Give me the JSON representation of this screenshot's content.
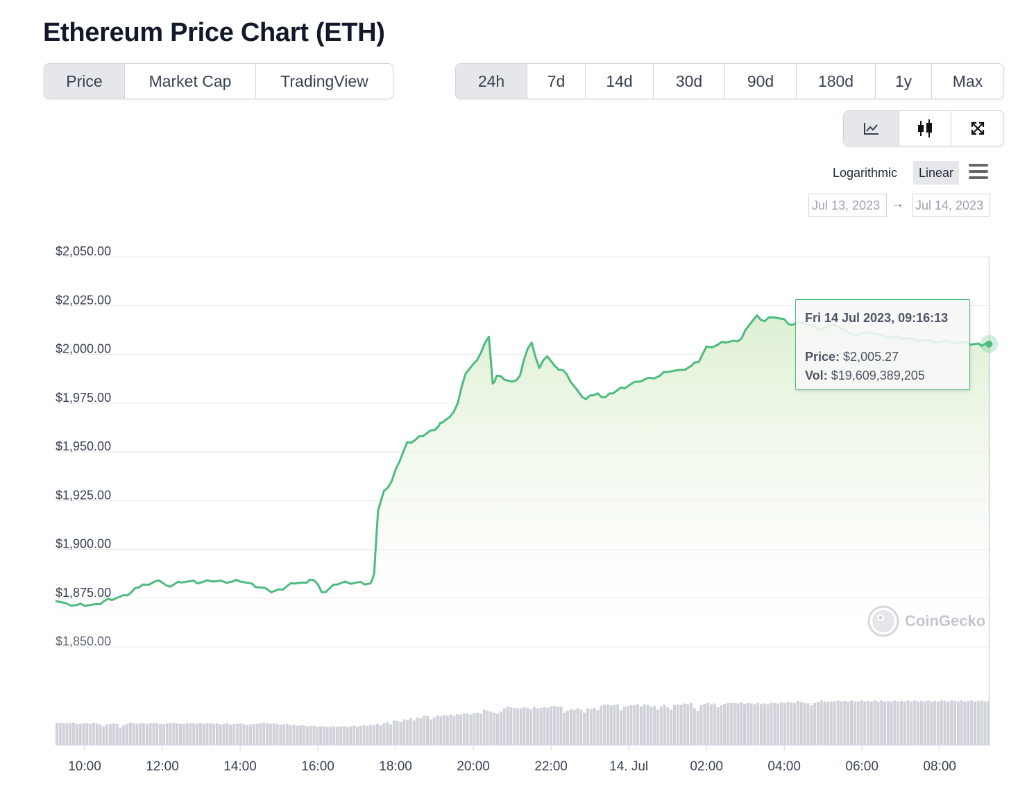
{
  "page_title": "Ethereum Price Chart (ETH)",
  "view_tabs": [
    {
      "label": "Price",
      "active": true
    },
    {
      "label": "Market Cap",
      "active": false
    },
    {
      "label": "TradingView",
      "active": false
    }
  ],
  "range_tabs": [
    {
      "label": "24h",
      "active": true
    },
    {
      "label": "7d",
      "active": false
    },
    {
      "label": "14d",
      "active": false
    },
    {
      "label": "30d",
      "active": false
    },
    {
      "label": "90d",
      "active": false
    },
    {
      "label": "180d",
      "active": false
    },
    {
      "label": "1y",
      "active": false
    },
    {
      "label": "Max",
      "active": false
    }
  ],
  "chart_type_buttons": [
    {
      "icon": "line-chart-icon",
      "active": true
    },
    {
      "icon": "candlestick-icon",
      "active": false
    },
    {
      "icon": "expand-icon",
      "active": false
    }
  ],
  "scale": {
    "logarithmic": "Logarithmic",
    "linear": "Linear",
    "active": "Linear"
  },
  "menu_icon": "hamburger-menu-icon",
  "date_range": {
    "from": "Jul 13, 2023",
    "to": "Jul 14, 2023",
    "arrow": "→"
  },
  "tooltip": {
    "date": "Fri 14 Jul 2023, 09:16:13",
    "price_label": "Price:",
    "price_value": "$2,005.27",
    "vol_label": "Vol:",
    "vol_value": "$19,609,389,205"
  },
  "watermark": "CoinGecko",
  "colors": {
    "line": "#4cbb7f",
    "area_top": "#dcefd0",
    "volume": "#cfd2d8",
    "grid": "#e6e6e6"
  },
  "chart_data": {
    "type": "area",
    "ylim": [
      1850,
      2050
    ],
    "y_ticks": [
      "$2,050.00",
      "$2,025.00",
      "$2,000.00",
      "$1,975.00",
      "$1,950.00",
      "$1,925.00",
      "$1,900.00",
      "$1,875.00",
      "$1,850.00"
    ],
    "y_tick_values": [
      2050,
      2025,
      2000,
      1975,
      1950,
      1925,
      1900,
      1875,
      1850
    ],
    "x_ticks": [
      "10:00",
      "12:00",
      "14:00",
      "16:00",
      "18:00",
      "20:00",
      "22:00",
      "14. Jul",
      "02:00",
      "04:00",
      "06:00",
      "08:00"
    ],
    "x_tick_hours": [
      10,
      12,
      14,
      16,
      18,
      20,
      22,
      24,
      26,
      28,
      30,
      32
    ],
    "x_range_hours": [
      9.25,
      33.3
    ],
    "series": [
      {
        "name": "Price",
        "x_hours": [
          9.25,
          9.5,
          9.8,
          10.0,
          10.3,
          10.5,
          10.7,
          11.0,
          11.2,
          11.4,
          11.5,
          11.8,
          12.0,
          12.1,
          12.3,
          12.5,
          12.8,
          13.0,
          13.3,
          13.5,
          13.8,
          14.0,
          14.3,
          14.5,
          14.8,
          15.0,
          15.2,
          15.4,
          15.6,
          15.8,
          16.0,
          16.1,
          16.3,
          16.5,
          16.7,
          17.0,
          17.2,
          17.35,
          17.45,
          17.55,
          17.7,
          17.9,
          18.1,
          18.3,
          18.5,
          18.7,
          18.9,
          19.1,
          19.2,
          19.4,
          19.6,
          19.8,
          20.0,
          20.2,
          20.4,
          20.5,
          20.6,
          20.8,
          21.0,
          21.2,
          21.4,
          21.5,
          21.7,
          21.9,
          22.1,
          22.3,
          22.5,
          22.7,
          22.9,
          23.1,
          23.2,
          23.4,
          23.6,
          23.8,
          24.0,
          24.3,
          24.5,
          24.8,
          25.0,
          25.3,
          25.6,
          25.8,
          26.0,
          26.3,
          26.5,
          26.7,
          26.9,
          27.1,
          27.3,
          27.5,
          27.7,
          28.0,
          28.2,
          28.5,
          28.8,
          29.0,
          29.3,
          29.6,
          29.9,
          30.2,
          30.5,
          30.8,
          31.0,
          31.3,
          31.6,
          31.9,
          32.2,
          32.5,
          32.8,
          33.0,
          33.15,
          33.3
        ],
        "y": [
          1873.5,
          1872.5,
          1871.5,
          1871,
          1872,
          1873.5,
          1874,
          1876.5,
          1878,
          1880.5,
          1882,
          1883.5,
          1883,
          1881.5,
          1882,
          1883,
          1884,
          1883,
          1883.5,
          1884,
          1883.5,
          1883.5,
          1882.5,
          1880.5,
          1878,
          1879.5,
          1881,
          1882.5,
          1883,
          1884.5,
          1882,
          1878,
          1880,
          1882,
          1883.5,
          1883,
          1882,
          1882.5,
          1888,
          1920,
          1930,
          1935,
          1945,
          1955,
          1956,
          1958,
          1961,
          1963,
          1965,
          1968,
          1975,
          1990,
          1995,
          2001,
          2009,
          1985,
          1989,
          1987,
          1986,
          1989,
          2003,
          2006,
          1993,
          1999,
          1994,
          1992,
          1986,
          1981,
          1977,
          1979,
          1980,
          1978,
          1980,
          1983,
          1984,
          1986,
          1988,
          1989,
          1991,
          1992,
          1994,
          1996,
          2004,
          2005,
          2006,
          2007,
          2008,
          2015,
          2020,
          2017,
          2019,
          2018,
          2015,
          2016,
          2014,
          2013,
          2015,
          2012,
          2010,
          2011,
          2010,
          2009,
          2008,
          2008,
          2007,
          2006,
          2007,
          2006,
          2005,
          2005.5,
          2005,
          2005.27
        ]
      }
    ],
    "volume_relative": [
      0.45,
      0.45,
      0.44,
      0.45,
      0.44,
      0.45,
      0.43,
      0.43,
      0.44,
      0.44,
      0.43,
      0.45,
      0.44,
      0.42,
      0.38,
      0.42,
      0.43,
      0.44,
      0.43,
      0.35,
      0.4,
      0.43,
      0.45,
      0.44,
      0.43,
      0.44,
      0.44,
      0.43,
      0.44,
      0.44,
      0.44,
      0.43,
      0.43,
      0.44,
      0.44,
      0.45,
      0.44,
      0.43,
      0.43,
      0.44,
      0.44,
      0.44,
      0.43,
      0.44,
      0.43,
      0.44,
      0.44,
      0.43,
      0.44,
      0.42,
      0.43,
      0.44,
      0.41,
      0.43,
      0.43,
      0.44,
      0.42,
      0.4,
      0.42,
      0.43,
      0.43,
      0.44,
      0.45,
      0.44,
      0.43,
      0.44,
      0.43,
      0.41,
      0.42,
      0.43,
      0.4,
      0.41,
      0.39,
      0.4,
      0.4,
      0.38,
      0.39,
      0.39,
      0.37,
      0.38,
      0.38,
      0.37,
      0.37,
      0.38,
      0.37,
      0.38,
      0.38,
      0.37,
      0.38,
      0.39,
      0.37,
      0.39,
      0.4,
      0.39,
      0.41,
      0.4,
      0.43,
      0.4,
      0.44,
      0.47,
      0.42,
      0.5,
      0.49,
      0.47,
      0.52,
      0.51,
      0.55,
      0.5,
      0.56,
      0.55,
      0.6,
      0.59,
      0.52,
      0.56,
      0.6,
      0.59,
      0.61,
      0.6,
      0.62,
      0.59,
      0.63,
      0.62,
      0.64,
      0.64,
      0.62,
      0.65,
      0.66,
      0.64,
      0.72,
      0.7,
      0.68,
      0.66,
      0.64,
      0.68,
      0.75,
      0.78,
      0.77,
      0.76,
      0.75,
      0.75,
      0.77,
      0.76,
      0.73,
      0.78,
      0.75,
      0.76,
      0.78,
      0.76,
      0.79,
      0.8,
      0.78,
      0.79,
      0.66,
      0.7,
      0.73,
      0.72,
      0.75,
      0.72,
      0.66,
      0.75,
      0.74,
      0.76,
      0.71,
      0.8,
      0.82,
      0.83,
      0.81,
      0.82,
      0.83,
      0.71,
      0.78,
      0.8,
      0.82,
      0.81,
      0.83,
      0.79,
      0.83,
      0.82,
      0.78,
      0.8,
      0.72,
      0.78,
      0.82,
      0.77,
      0.72,
      0.82,
      0.83,
      0.82,
      0.85,
      0.84,
      0.86,
      0.75,
      0.7,
      0.82,
      0.84,
      0.86,
      0.83,
      0.85,
      0.77,
      0.81,
      0.84,
      0.86,
      0.86,
      0.86,
      0.85,
      0.88,
      0.84,
      0.86,
      0.85,
      0.83,
      0.86,
      0.84,
      0.85,
      0.83,
      0.86,
      0.86,
      0.85,
      0.87,
      0.86,
      0.88,
      0.87,
      0.86,
      0.9,
      0.88,
      0.86,
      0.85,
      0.81,
      0.86,
      0.88,
      0.91,
      0.89,
      0.89,
      0.89,
      0.89,
      0.91,
      0.89,
      0.9,
      0.89,
      0.91,
      0.89,
      0.89,
      0.91,
      0.89,
      0.9,
      0.89,
      0.91,
      0.89,
      0.91,
      0.89,
      0.9,
      0.89,
      0.91,
      0.89,
      0.9,
      0.89,
      0.91,
      0.89,
      0.91,
      0.89,
      0.9,
      0.89,
      0.91,
      0.89,
      0.9,
      0.89,
      0.91,
      0.9,
      0.89,
      0.91,
      0.9,
      0.89,
      0.91,
      0.89,
      0.9,
      0.91,
      0.89,
      0.9,
      0.91,
      0.89,
      0.9
    ],
    "hover_point": {
      "x_hours": 33.27,
      "y": 2005.27
    },
    "grid": true,
    "legend": "none"
  }
}
